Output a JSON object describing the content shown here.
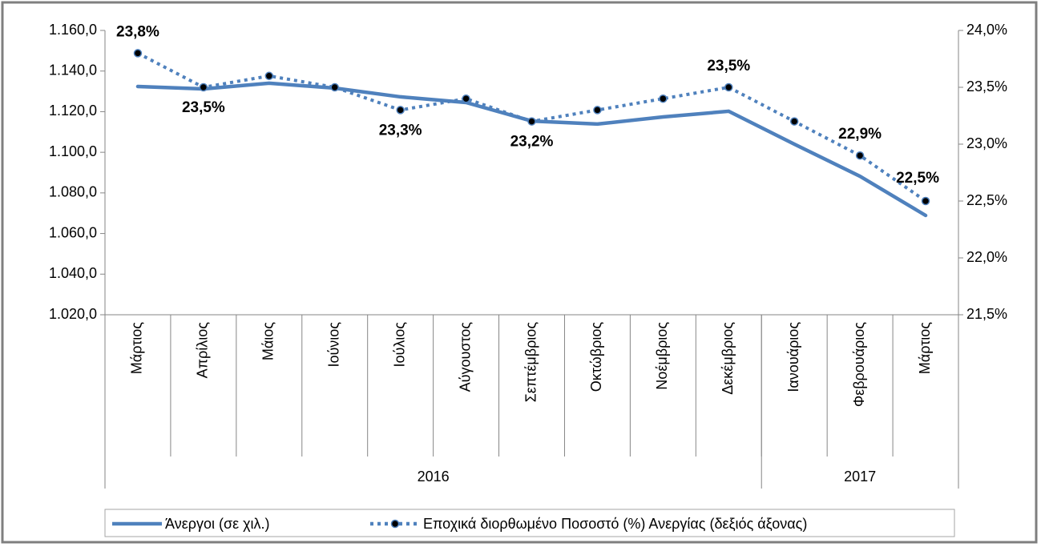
{
  "chart_data": {
    "type": "line",
    "categories": [
      "Μάρτιος",
      "Απρίλιος",
      "Μάιος",
      "Ιούνιος",
      "Ιούλιος",
      "Αύγουστος",
      "Σεπτέμβριος",
      "Οκτώβριος",
      "Νοέμβριος",
      "Δεκέμβριος",
      "Ιανουάριος",
      "Φεβρουάριος",
      "Μάρτιος"
    ],
    "groups": [
      {
        "label": "2016",
        "span": 10
      },
      {
        "label": "2017",
        "span": 3
      }
    ],
    "series": [
      {
        "name": "Άνεργοι (σε χιλ.)",
        "color": "#4f81bd",
        "style": "solid",
        "values": [
          1132.4,
          1131.2,
          1134.0,
          1131.6,
          1127.3,
          1124.5,
          1115.4,
          1113.9,
          1117.4,
          1120.2,
          1104.0,
          1088.2,
          1068.9
        ]
      },
      {
        "name": "Εποχικά διορθωμένο Ποσοστό (%) Ανεργίας (δεξιός άξονας)",
        "color": "#4f81bd",
        "style": "dotted",
        "axis": "y2",
        "marker_color": "#000000",
        "values": [
          23.8,
          23.5,
          23.6,
          23.5,
          23.3,
          23.4,
          23.2,
          23.3,
          23.4,
          23.5,
          23.2,
          22.9,
          22.5
        ],
        "value_labels": [
          "23,8%",
          "23,5%",
          null,
          null,
          "23,3%",
          null,
          "23,2%",
          null,
          null,
          "23,5%",
          null,
          "22,9%",
          "22,5%"
        ]
      }
    ],
    "ylim": [
      1020,
      1160
    ],
    "yticks": [
      {
        "value": 1020,
        "label": "1.020,0"
      },
      {
        "value": 1040,
        "label": "1.040,0"
      },
      {
        "value": 1060,
        "label": "1.060,0"
      },
      {
        "value": 1080,
        "label": "1.080,0"
      },
      {
        "value": 1100,
        "label": "1.100,0"
      },
      {
        "value": 1120,
        "label": "1.120,0"
      },
      {
        "value": 1140,
        "label": "1.140,0"
      },
      {
        "value": 1160,
        "label": "1.160,0"
      }
    ],
    "y2lim": [
      21.5,
      24.0
    ],
    "y2ticks": [
      {
        "value": 21.5,
        "label": "21,5%"
      },
      {
        "value": 22.0,
        "label": "22,0%"
      },
      {
        "value": 22.5,
        "label": "22,5%"
      },
      {
        "value": 23.0,
        "label": "23,0%"
      },
      {
        "value": 23.5,
        "label": "23,5%"
      },
      {
        "value": 24.0,
        "label": "24,0%"
      }
    ],
    "legend": "bottom"
  }
}
